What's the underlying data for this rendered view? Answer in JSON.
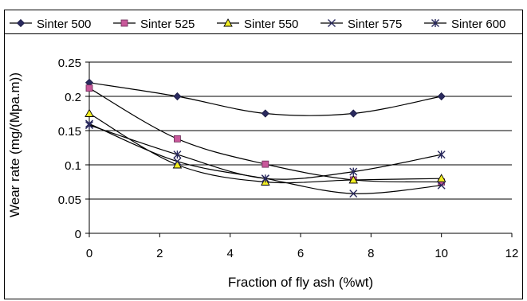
{
  "chart_data": {
    "type": "line",
    "title": "",
    "xlabel": "Fraction of fly ash (%wt)",
    "ylabel": "Wear rate (mg/(Mpa.m))",
    "xlim": [
      0,
      12
    ],
    "ylim": [
      0,
      0.25
    ],
    "xticks": [
      0,
      2,
      4,
      6,
      8,
      10,
      12
    ],
    "yticks": [
      0,
      0.05,
      0.1,
      0.15,
      0.2,
      0.25
    ],
    "ytick_labels": [
      "0",
      "0.05",
      "0.1",
      "0.15",
      "0.2",
      "0.25"
    ],
    "grid": "horizontal",
    "legend_position": "top",
    "x": [
      0,
      2.5,
      5,
      7.5,
      10
    ],
    "series": [
      {
        "name": "Sinter 500",
        "marker": "diamond",
        "marker_color": "#2a2a5e",
        "values": [
          0.22,
          0.2,
          0.175,
          0.175,
          0.2
        ]
      },
      {
        "name": "Sinter 525",
        "marker": "square",
        "marker_color": "#c8589a",
        "values": [
          0.212,
          0.138,
          0.101,
          0.078,
          0.075
        ]
      },
      {
        "name": "Sinter 550",
        "marker": "triangle",
        "marker_color": "#f2ee24",
        "values": [
          0.175,
          0.1,
          0.075,
          0.078,
          0.08
        ]
      },
      {
        "name": "Sinter 575",
        "marker": "x",
        "marker_color": "#2a2a5e",
        "values": [
          0.16,
          0.105,
          0.08,
          0.058,
          0.07
        ]
      },
      {
        "name": "Sinter 600",
        "marker": "asterisk",
        "marker_color": "#2a2a5e",
        "values": [
          0.158,
          0.115,
          0.08,
          0.09,
          0.115
        ]
      }
    ]
  }
}
